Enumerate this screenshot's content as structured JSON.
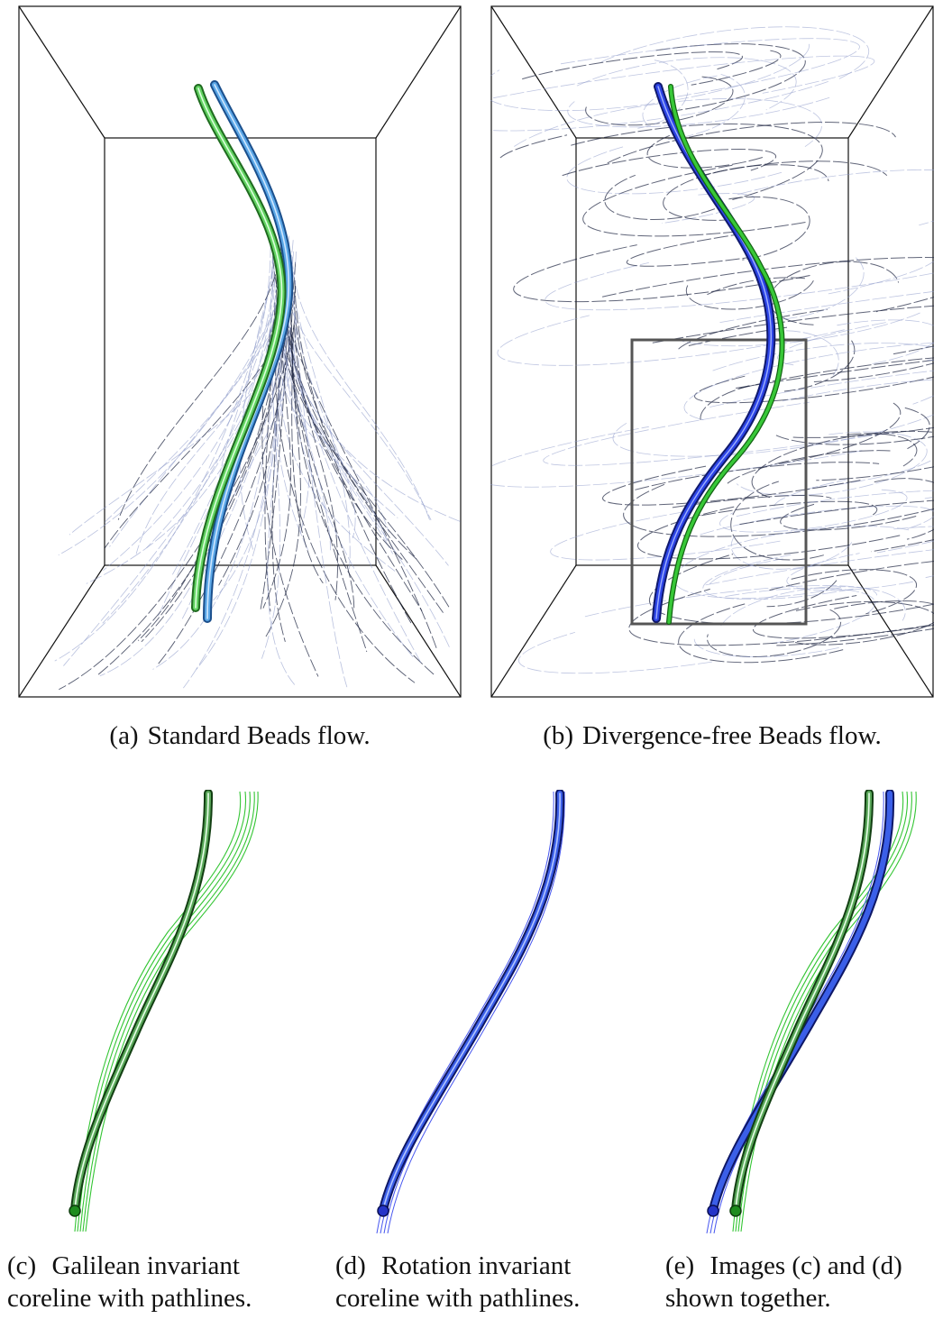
{
  "figure": {
    "panels": [
      {
        "id": "a",
        "tag": "(a)",
        "caption": "Standard Beads flow."
      },
      {
        "id": "b",
        "tag": "(b)",
        "caption": "Divergence-free Beads flow."
      },
      {
        "id": "c",
        "tag": "(c)",
        "caption_line1": "Galilean invariant",
        "caption_line2": "coreline with pathlines."
      },
      {
        "id": "d",
        "tag": "(d)",
        "caption_line1": "Rotation invariant",
        "caption_line2": "coreline with pathlines."
      },
      {
        "id": "e",
        "tag": "(e)",
        "caption_line1": "Images (c) and (d)",
        "caption_line2": "shown together."
      }
    ],
    "colors": {
      "galilean_coreline": "#3fbf3f",
      "rotation_coreline": "#2a3fd8",
      "pathlines_dark": "#1c2440",
      "pathlines_light": "#8a98c8",
      "box_frame": "#111111",
      "zoom_box": "#555555"
    }
  }
}
